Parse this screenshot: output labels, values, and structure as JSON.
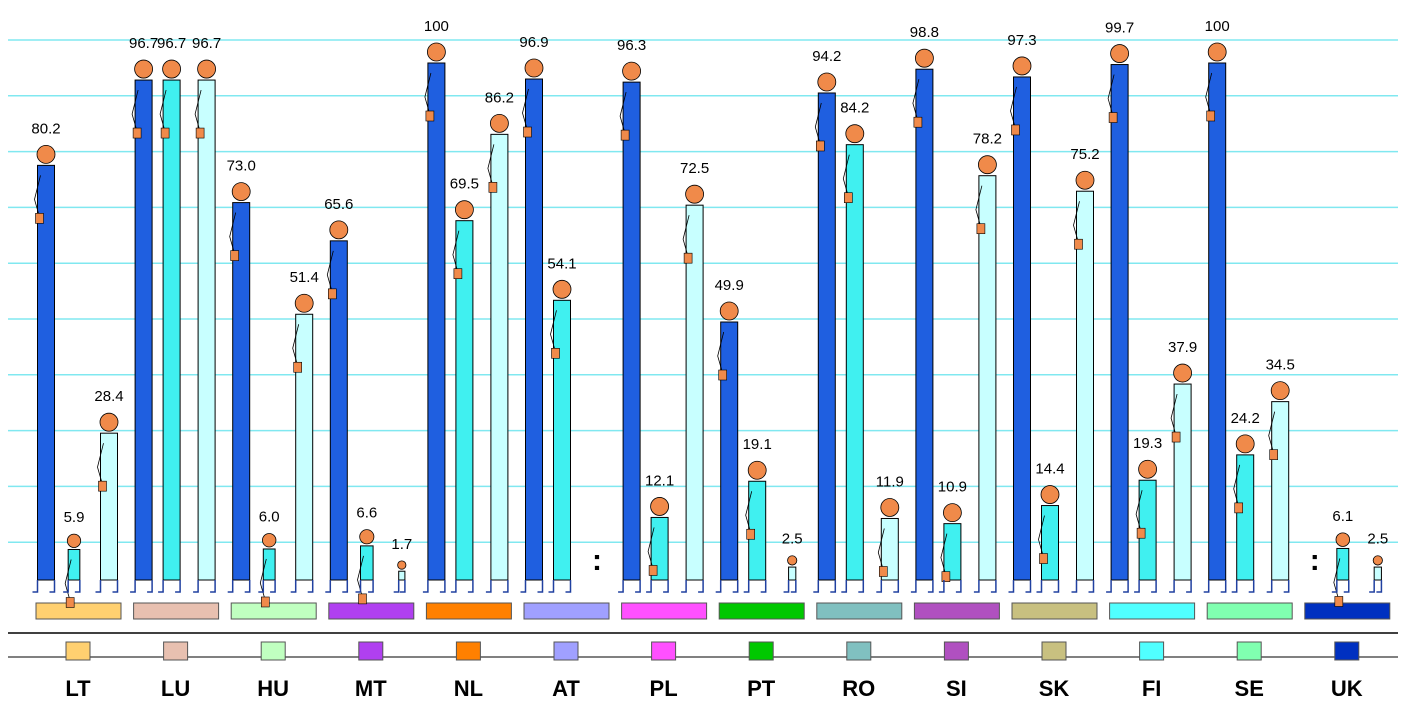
{
  "chart_data": {
    "type": "bar",
    "categories": [
      "LT",
      "LU",
      "HU",
      "MT",
      "NL",
      "AT",
      "PL",
      "PT",
      "RO",
      "SI",
      "SK",
      "FI",
      "SE",
      "UK"
    ],
    "category_colors": [
      "#ffd070",
      "#e8c0b0",
      "#c0ffc0",
      "#b040f0",
      "#ff8000",
      "#a0a0ff",
      "#ff50ff",
      "#00c800",
      "#80c0c0",
      "#b050c0",
      "#c8c080",
      "#50ffff",
      "#80ffb0",
      "#0030c0"
    ],
    "series": [
      {
        "color": "#1f5fe0",
        "values": [
          80.2,
          96.7,
          73.0,
          65.6,
          100,
          96.9,
          96.3,
          49.9,
          94.2,
          98.8,
          97.3,
          99.7,
          100,
          null
        ],
        "value_labels": [
          "80.2",
          "96.7",
          "73.0",
          "65.6",
          "100",
          "96.9",
          "96.3",
          "49.9",
          "94.2",
          "98.8",
          "97.3",
          "99.7",
          "100",
          ":"
        ]
      },
      {
        "color": "#40f0f0",
        "values": [
          5.9,
          96.7,
          6.0,
          6.6,
          69.5,
          54.1,
          12.1,
          19.1,
          84.2,
          10.9,
          14.4,
          19.3,
          24.2,
          6.1
        ],
        "value_labels": [
          "5.9",
          "96.7",
          "6.0",
          "6.6",
          "69.5",
          "54.1",
          "12.1",
          "19.1",
          "84.2",
          "10.9",
          "14.4",
          "19.3",
          "24.2",
          "6.1"
        ]
      },
      {
        "color": "#c8ffff",
        "values": [
          28.4,
          96.7,
          51.4,
          1.7,
          86.2,
          null,
          72.5,
          2.5,
          11.9,
          78.2,
          75.2,
          37.9,
          34.5,
          2.5
        ],
        "value_labels": [
          "28.4",
          "96.7",
          "51.4",
          "1.7",
          "86.2",
          ":",
          "72.5",
          "2.5",
          "11.9",
          "78.2",
          "75.2",
          "37.9",
          "34.5",
          "2.5"
        ]
      }
    ],
    "ylim": [
      0,
      100
    ],
    "grid": true
  }
}
